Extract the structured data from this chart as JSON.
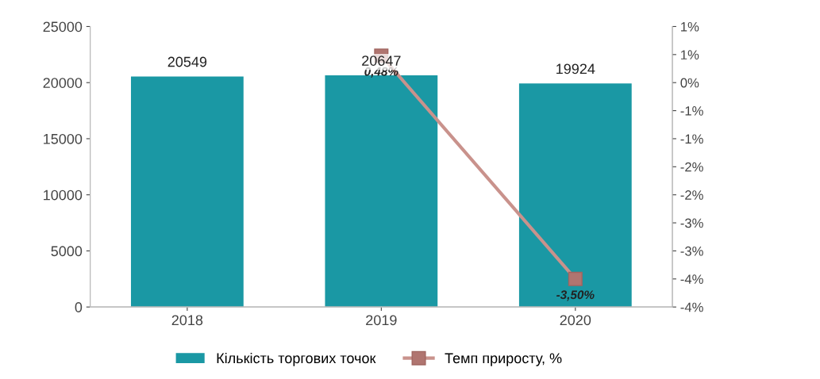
{
  "chart_data": {
    "type": "bar",
    "categories": [
      "2018",
      "2019",
      "2020"
    ],
    "series": [
      {
        "name": "Кількість торгових точок",
        "color": "#1a98a4",
        "values": [
          20549,
          20647,
          19924
        ],
        "value_labels": [
          "20549",
          "20647",
          "19924"
        ]
      },
      {
        "name": "Темп приросту, %",
        "type": "line",
        "axis": "y2",
        "color": "#c9928c",
        "values": [
          null,
          0.48,
          -3.5
        ],
        "value_labels": [
          null,
          "0,48%",
          "-3,50%"
        ]
      }
    ],
    "ylim": [
      0,
      25000
    ],
    "yticks": [
      0,
      5000,
      10000,
      15000,
      20000,
      25000
    ],
    "y2lim": [
      -4,
      1
    ],
    "y2ticks": [
      {
        "value": -4,
        "label": "-4%"
      },
      {
        "value": -3.5,
        "label": "-4%"
      },
      {
        "value": -3,
        "label": "-3%"
      },
      {
        "value": -2.5,
        "label": "-3%"
      },
      {
        "value": -2,
        "label": "-2%"
      },
      {
        "value": -1.5,
        "label": "-2%"
      },
      {
        "value": -1,
        "label": "-1%"
      },
      {
        "value": -0.5,
        "label": "-1%"
      },
      {
        "value": 0,
        "label": "0%"
      },
      {
        "value": 0.5,
        "label": "1%"
      },
      {
        "value": 1,
        "label": "1%"
      }
    ],
    "marker": "square",
    "line_style": "solid",
    "grid": false,
    "legend": "bottom"
  }
}
